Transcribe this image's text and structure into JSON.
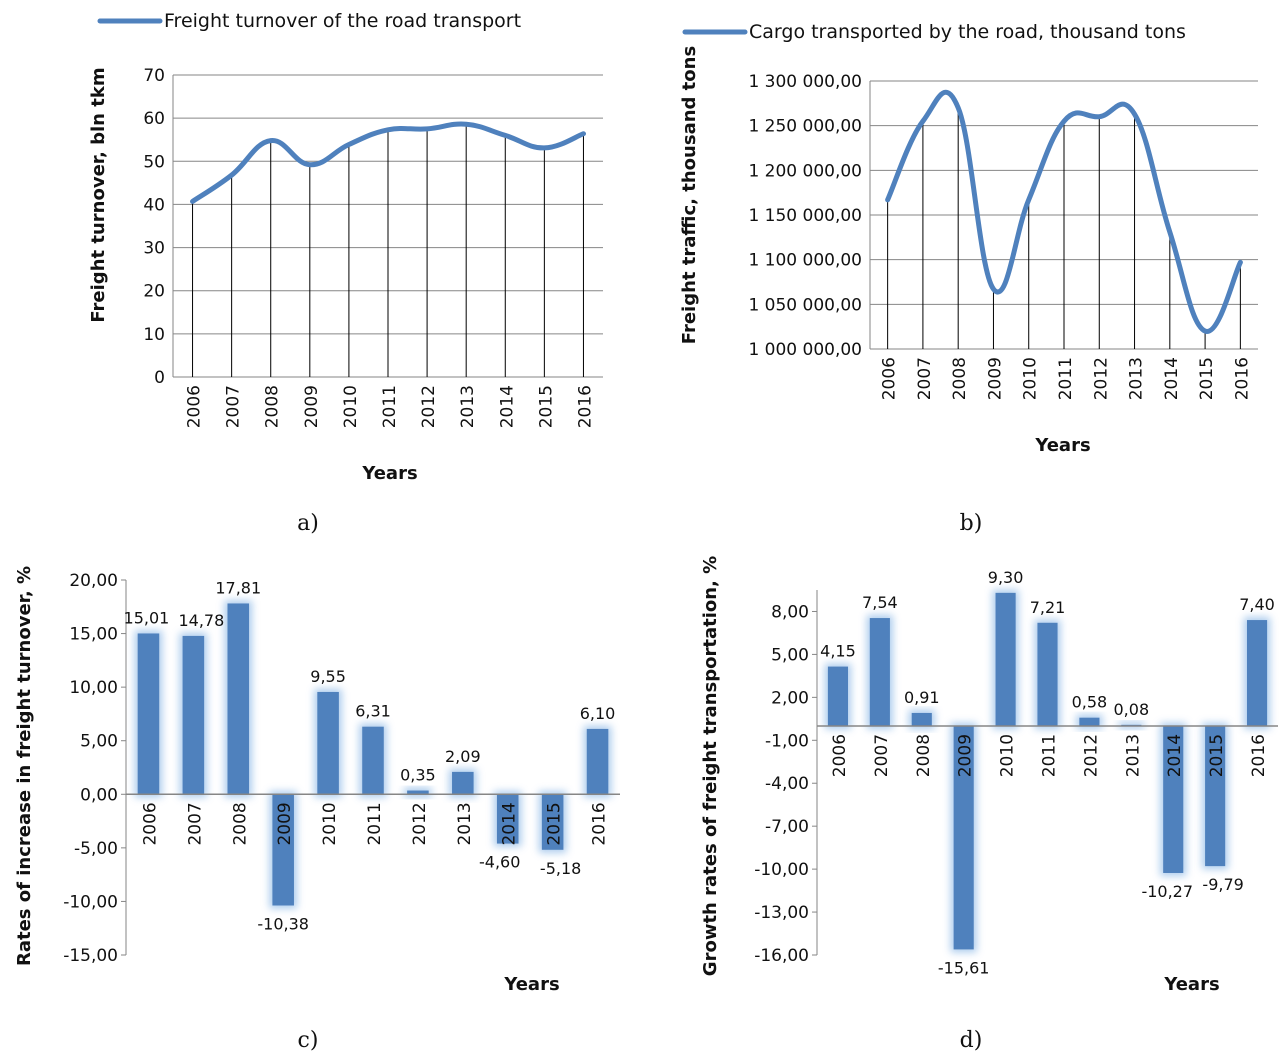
{
  "chart_data": [
    {
      "panel": "a)",
      "type": "line",
      "legend": "Freight turnover of the road transport",
      "xlabel": "Years",
      "ylabel": "Freight turnover, bln tkm",
      "categories": [
        "2006",
        "2007",
        "2008",
        "2009",
        "2010",
        "2011",
        "2012",
        "2013",
        "2014",
        "2015",
        "2016"
      ],
      "values": [
        40.7,
        46.8,
        54.8,
        49.2,
        53.9,
        57.3,
        57.5,
        58.6,
        56.0,
        53.1,
        56.4
      ],
      "ylim": [
        0,
        70
      ],
      "yticks": [
        0,
        10,
        20,
        30,
        40,
        50,
        60,
        70
      ],
      "ytick_labels": [
        "0",
        "10",
        "20",
        "30",
        "40",
        "50",
        "60",
        "70"
      ],
      "color": "#4f81bd",
      "grid": true
    },
    {
      "panel": "b)",
      "type": "line",
      "legend": "Cargo transported by the road, thousand tons",
      "xlabel": "Years",
      "ylabel": "Freight traffic, thousand tons",
      "categories": [
        "2006",
        "2007",
        "2008",
        "2009",
        "2010",
        "2011",
        "2012",
        "2013",
        "2014",
        "2015",
        "2016"
      ],
      "values": [
        1167000,
        1255000,
        1270000,
        1067000,
        1167000,
        1255000,
        1260000,
        1263000,
        1131000,
        1020000,
        1097000
      ],
      "ylim": [
        1000000,
        1300000
      ],
      "yticks": [
        1000000,
        1050000,
        1100000,
        1150000,
        1200000,
        1250000,
        1300000
      ],
      "ytick_labels": [
        "1 000 000,00",
        "1 050 000,00",
        "1 100 000,00",
        "1 150 000,00",
        "1 200 000,00",
        "1 250 000,00",
        "1 300 000,00"
      ],
      "color": "#4f81bd",
      "grid": true
    },
    {
      "panel": "c)",
      "type": "bar",
      "xlabel": "Years",
      "ylabel": "Rates of increase in freight turnover, %",
      "categories": [
        "2006",
        "2007",
        "2008",
        "2009",
        "2010",
        "2011",
        "2012",
        "2013",
        "2014",
        "2015",
        "2016"
      ],
      "values": [
        15.01,
        14.78,
        17.81,
        -10.38,
        9.55,
        6.31,
        0.35,
        2.09,
        -4.6,
        -5.18,
        6.1
      ],
      "value_labels": [
        "15,01",
        "14,78",
        "17,81",
        "-10,38",
        "9,55",
        "6,31",
        "0,35",
        "2,09",
        "-4,60",
        "-5,18",
        "6,10"
      ],
      "ylim": [
        -15,
        20
      ],
      "yticks": [
        -15,
        -10,
        -5,
        0,
        5,
        10,
        15,
        20
      ],
      "ytick_labels": [
        "-15,00",
        "-10,00",
        "-5,00",
        "0,00",
        "5,00",
        "10,00",
        "15,00",
        "20,00"
      ],
      "color": "#4f81bd",
      "grid": false
    },
    {
      "panel": "d)",
      "type": "bar",
      "xlabel": "Years",
      "ylabel": "Growth rates of freight transportation, %",
      "categories": [
        "2006",
        "2007",
        "2008",
        "2009",
        "2010",
        "2011",
        "2012",
        "2013",
        "2014",
        "2015",
        "2016"
      ],
      "values": [
        4.15,
        7.54,
        0.91,
        -15.61,
        9.3,
        7.21,
        0.58,
        0.08,
        -10.27,
        -9.79,
        7.4
      ],
      "value_labels": [
        "4,15",
        "7,54",
        "0,91",
        "-15,61",
        "9,30",
        "7,21",
        "0,58",
        "0,08",
        "-10,27",
        "-9,79",
        "7,40"
      ],
      "ylim": [
        -16,
        9.5
      ],
      "yticks": [
        -16,
        -13,
        -10,
        -7,
        -4,
        -1,
        2,
        5,
        8
      ],
      "ytick_labels": [
        "-16,00",
        "-13,00",
        "-10,00",
        "-7,00",
        "-4,00",
        "-1,00",
        "2,00",
        "5,00",
        "8,00"
      ],
      "color": "#4f81bd",
      "grid": false
    }
  ]
}
